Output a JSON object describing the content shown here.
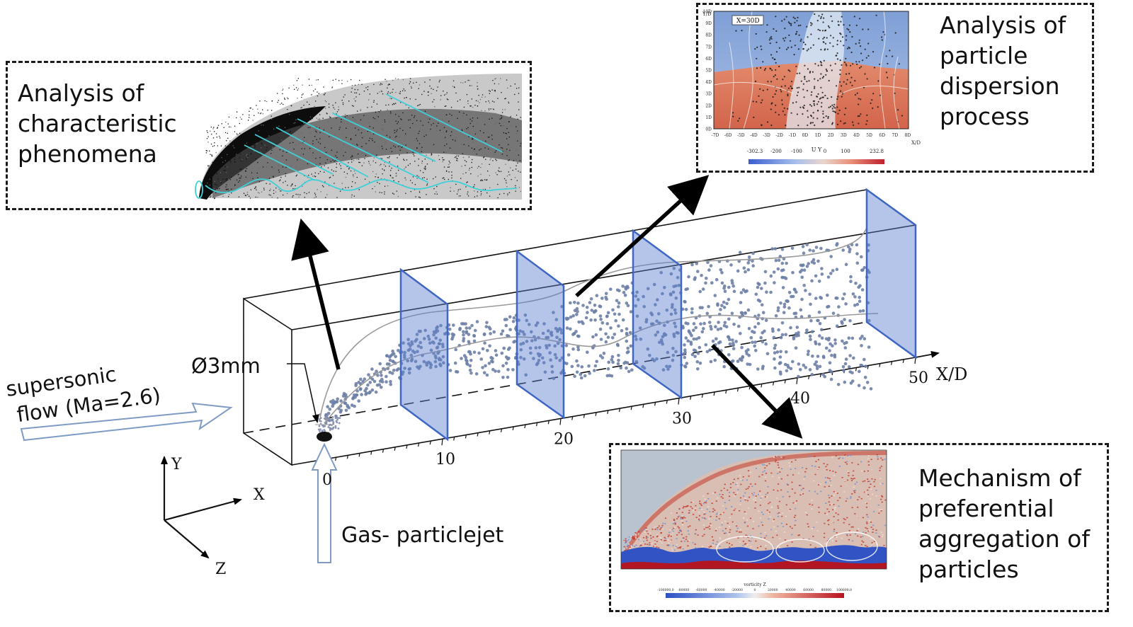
{
  "panels": {
    "characteristic": {
      "caption": "Analysis of\ncharacteristic\nphenomena"
    },
    "dispersion": {
      "caption": "Analysis of\nparticle\ndispersion\nprocess",
      "plot": {
        "slice_label": "X=30D",
        "y_axis_label": "Y/D",
        "x_axis_label": "X/D",
        "y_ticks": [
          "0D",
          "1D",
          "2D",
          "3D",
          "4D",
          "5D",
          "6D",
          "7D",
          "8D",
          "9D",
          "10D"
        ],
        "x_ticks": [
          "-7D",
          "-6D",
          "-5D",
          "-4D",
          "-3D",
          "-2D",
          "-1D",
          "0D",
          "1D",
          "2D",
          "3D",
          "4D",
          "5D",
          "6D",
          "7D",
          "8D"
        ],
        "colorbar_title": "U Y",
        "colorbar_ticks": [
          "-302.3",
          "-200",
          "-100",
          "0",
          "100",
          "232.8"
        ]
      }
    },
    "aggregation": {
      "caption": "Mechanism of\npreferential\naggregation of\nparticles",
      "plot": {
        "colorbar_title": "vorticity Z",
        "colorbar_ticks": [
          "-100000.0",
          "-80000",
          "-60000",
          "-40000",
          "-20000",
          "0",
          "20000",
          "40000",
          "60000",
          "80000",
          "100000.0"
        ]
      }
    }
  },
  "domain": {
    "axis_label": "X/D",
    "axis_ticks": [
      "0",
      "10",
      "20",
      "30",
      "40",
      "50"
    ],
    "nozzle_label": "Ø3mm",
    "inflow_label": "supersonic\nflow (Ma=2.6)",
    "jet_label": "Gas- particlejet"
  },
  "triad": {
    "y": "Y",
    "x": "X",
    "z": "Z"
  },
  "colors": {
    "slice_fill": "#5b7fd0",
    "slice_edge": "#3f66c4",
    "particle": "#6d7fa6",
    "shear_line": "#3fd0d8",
    "arrow": "#000000",
    "inflow_arrow": "#7f9bc3"
  }
}
